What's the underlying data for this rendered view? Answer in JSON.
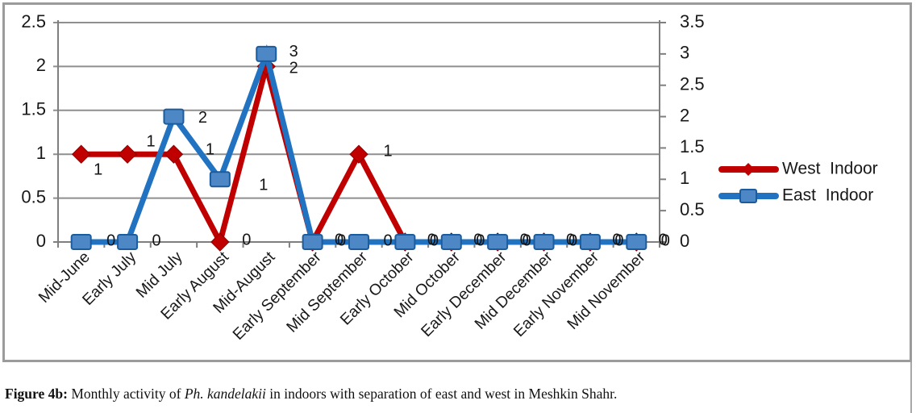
{
  "chart_data": {
    "type": "line",
    "categories": [
      "Mid-June",
      "Early July",
      "Mid July",
      "Early August",
      "Mid-August",
      "Early September",
      "Mid September",
      "Early October",
      "Mid October",
      "Early December",
      "Mid December",
      "Early November",
      "Mid November"
    ],
    "series": [
      {
        "name": "West  Indoor",
        "axis": "left",
        "marker": "diamond",
        "values": [
          1,
          1,
          1,
          0,
          2,
          0,
          1,
          0,
          0,
          0,
          0,
          0,
          0
        ]
      },
      {
        "name": "East  Indoor",
        "axis": "right",
        "marker": "square",
        "values": [
          0,
          0,
          2,
          1,
          3,
          0,
          0,
          0,
          0,
          0,
          0,
          0,
          0
        ]
      }
    ],
    "data_labels_shown": true,
    "left_axis": {
      "min": 0,
      "max": 2.5,
      "tick_labels": [
        "2.5",
        "2",
        "1.5",
        "1",
        "0.5",
        "0"
      ]
    },
    "right_axis": {
      "min": 0,
      "max": 3.5,
      "tick_labels": [
        "3.5",
        "3",
        "2.5",
        "2",
        "1.5",
        "1",
        "0.5",
        "0"
      ]
    },
    "grid": true,
    "legend_position": "right",
    "title": ""
  },
  "colors": {
    "west_line": "#C00000",
    "west_marker_stroke": "#8B0000",
    "east_line": "#2173C2",
    "east_marker_fill": "#4E87C6",
    "east_marker_stroke": "#1B5C9E",
    "gridline": "#8F8F8F",
    "axis": "#7F7F7F",
    "tick_text": "#181818",
    "label_text": "#141414",
    "frame_border": "#9b9b9b"
  },
  "caption": {
    "prefix": "Figure 4b:",
    "before_species": " Monthly activity of ",
    "species": "Ph. kandelakii",
    "after_species": " in indoors with separation of east and west in Meshkin Shahr."
  }
}
